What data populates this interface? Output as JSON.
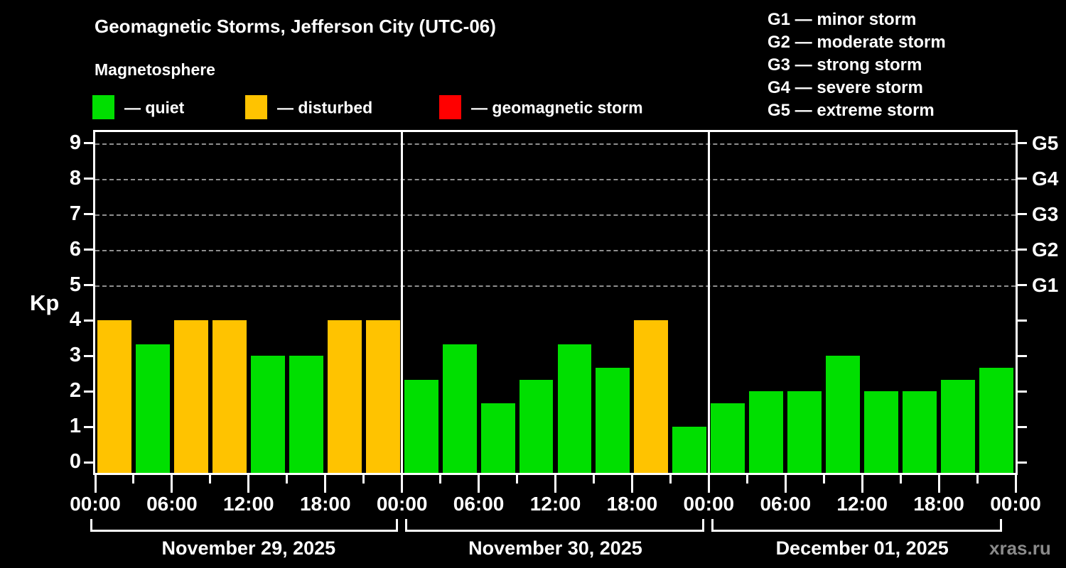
{
  "title": "Geomagnetic Storms, Jefferson City (UTC-06)",
  "subtitle": "Magnetosphere",
  "watermark": "xras.ru",
  "colors": {
    "quiet": "#00df00",
    "disturbed": "#ffc300",
    "storm": "#ff0000",
    "background": "#000000",
    "axis": "#ffffff",
    "grid": "#8f8f8f",
    "watermark_text": "#8a8a8a"
  },
  "legend": [
    {
      "key": "quiet",
      "label": "— quiet"
    },
    {
      "key": "disturbed",
      "label": "— disturbed"
    },
    {
      "key": "storm",
      "label": "— geomagnetic storm"
    }
  ],
  "g_scale_legend": [
    "G1 — minor storm",
    "G2 — moderate storm",
    "G3 — strong storm",
    "G4 — severe storm",
    "G5 — extreme storm"
  ],
  "chart_data": {
    "type": "bar",
    "ylabel": "Kp",
    "ylim": [
      0,
      9
    ],
    "y_ticks": [
      0,
      1,
      2,
      3,
      4,
      5,
      6,
      7,
      8,
      9
    ],
    "gridlines_at": [
      5,
      6,
      7,
      8,
      9
    ],
    "right_axis_labels": [
      {
        "kp": 5,
        "label": "G1"
      },
      {
        "kp": 6,
        "label": "G2"
      },
      {
        "kp": 7,
        "label": "G3"
      },
      {
        "kp": 8,
        "label": "G4"
      },
      {
        "kp": 9,
        "label": "G5"
      }
    ],
    "interval_hours": 3,
    "x_tick_labels": [
      "00:00",
      "06:00",
      "12:00",
      "18:00",
      "00:00",
      "06:00",
      "12:00",
      "18:00",
      "00:00",
      "06:00",
      "12:00",
      "18:00",
      "00:00"
    ],
    "days": [
      {
        "date": "November 29, 2025",
        "values": [
          4,
          3.33,
          4,
          4,
          3,
          3,
          4,
          4
        ],
        "status": [
          "disturbed",
          "quiet",
          "disturbed",
          "disturbed",
          "quiet",
          "quiet",
          "disturbed",
          "disturbed"
        ]
      },
      {
        "date": "November 30, 2025",
        "values": [
          2.33,
          3.33,
          1.67,
          2.33,
          3.33,
          2.67,
          4,
          1
        ],
        "status": [
          "quiet",
          "quiet",
          "quiet",
          "quiet",
          "quiet",
          "quiet",
          "disturbed",
          "quiet"
        ]
      },
      {
        "date": "December 01, 2025",
        "values": [
          1.67,
          2,
          2,
          3,
          2,
          2,
          2.33,
          2.67
        ],
        "status": [
          "quiet",
          "quiet",
          "quiet",
          "quiet",
          "quiet",
          "quiet",
          "quiet",
          "quiet"
        ]
      }
    ]
  }
}
